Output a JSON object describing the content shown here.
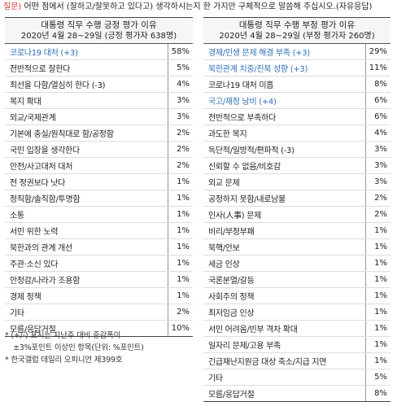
{
  "question": {
    "label": "질문)",
    "text": " 어떤 점에서 (잘하고/잘못하고 있다고) 생각하시는지 한 가지만 구체적으로 말씀해 주십시오.(자유응답)"
  },
  "positive": {
    "title": "대통령 직무 수행 긍정 평가 이유",
    "subtitle": "2020년 4월 28~29일 (긍정 평가자 638명)",
    "rows": [
      {
        "label": "코로나19 대처 (+3)",
        "pct": "58%",
        "highlight": true
      },
      {
        "label": "전반적으로 잘한다",
        "pct": "5%",
        "highlight": false
      },
      {
        "label": "최선을 다함/열심히 한다 (-3)",
        "pct": "4%",
        "highlight": false
      },
      {
        "label": "복지 확대",
        "pct": "3%",
        "highlight": false
      },
      {
        "label": "외교/국제관계",
        "pct": "3%",
        "highlight": false
      },
      {
        "label": "기본에 충실/원칙대로 함/공정함",
        "pct": "2%",
        "highlight": false
      },
      {
        "label": "국민 입장을 생각한다",
        "pct": "2%",
        "highlight": false
      },
      {
        "label": "안전/사고대처 대처",
        "pct": "2%",
        "highlight": false
      },
      {
        "label": "전 정권보다 낫다",
        "pct": "1%",
        "highlight": false
      },
      {
        "label": "정직함/솔직함/투명함",
        "pct": "1%",
        "highlight": false
      },
      {
        "label": "소통",
        "pct": "1%",
        "highlight": false
      },
      {
        "label": "서민 위한 노력",
        "pct": "1%",
        "highlight": false
      },
      {
        "label": "북한과의 관계 개선",
        "pct": "1%",
        "highlight": false
      },
      {
        "label": "주관·소신 있다",
        "pct": "1%",
        "highlight": false
      },
      {
        "label": "안정감/나라가 조용함",
        "pct": "1%",
        "highlight": false
      },
      {
        "label": "경제 정책",
        "pct": "1%",
        "highlight": false
      },
      {
        "label": "기타",
        "pct": "2%",
        "highlight": false
      },
      {
        "label": "모름/응답거절",
        "pct": "10%",
        "highlight": false
      }
    ]
  },
  "negative": {
    "title": "대통령 직무 수행 부정 평가 이유",
    "subtitle": "2020년 4월 28~29일 (부정 평가자 260명)",
    "rows": [
      {
        "label": "경제/민생 문제 해결 부족 (+3)",
        "pct": "29%",
        "highlight": true
      },
      {
        "label": "북한관계 치중/친북 성향 (+3)",
        "pct": "11%",
        "highlight": true
      },
      {
        "label": "코로나19 대처 미흡",
        "pct": "8%",
        "highlight": false
      },
      {
        "label": "국고/재정 낭비 (+4)",
        "pct": "6%",
        "highlight": true
      },
      {
        "label": "전반적으로 부족하다",
        "pct": "6%",
        "highlight": false
      },
      {
        "label": "과도한 복지",
        "pct": "4%",
        "highlight": false
      },
      {
        "label": "독단적/일방적/편파적 (-3)",
        "pct": "3%",
        "highlight": false
      },
      {
        "label": "신뢰할 수 없음/비호감",
        "pct": "3%",
        "highlight": false
      },
      {
        "label": "외교 문제",
        "pct": "3%",
        "highlight": false
      },
      {
        "label": "공정하지 못함/내로남불",
        "pct": "2%",
        "highlight": false
      },
      {
        "label": "인사(人事) 문제",
        "pct": "2%",
        "highlight": false
      },
      {
        "label": "비리/부정부패",
        "pct": "1%",
        "highlight": false
      },
      {
        "label": "북핵/안보",
        "pct": "1%",
        "highlight": false
      },
      {
        "label": "세금 인상",
        "pct": "1%",
        "highlight": false
      },
      {
        "label": "국론분열/갈등",
        "pct": "1%",
        "highlight": false
      },
      {
        "label": "사회주의 정책",
        "pct": "1%",
        "highlight": false
      },
      {
        "label": "최저임금 인상",
        "pct": "1%",
        "highlight": false
      },
      {
        "label": "서민 어려움/빈부 격차 확대",
        "pct": "1%",
        "highlight": false
      },
      {
        "label": "일자리 문제/고용 부족",
        "pct": "1%",
        "highlight": false
      },
      {
        "label": "긴급재난지원금 대상 축소/지급 지연",
        "pct": "1%",
        "highlight": false
      },
      {
        "label": "기타",
        "pct": "5%",
        "highlight": false
      },
      {
        "label": "모름/응답거절",
        "pct": "8%",
        "highlight": false
      }
    ]
  },
  "notes": [
    "* (+/-) 표시는 지난주 대비 증감폭이",
    "  ±3%포인트 이상인 항목(단위: %포인트)",
    "* 한국갤럽 데일리 오피니언 제399호"
  ]
}
